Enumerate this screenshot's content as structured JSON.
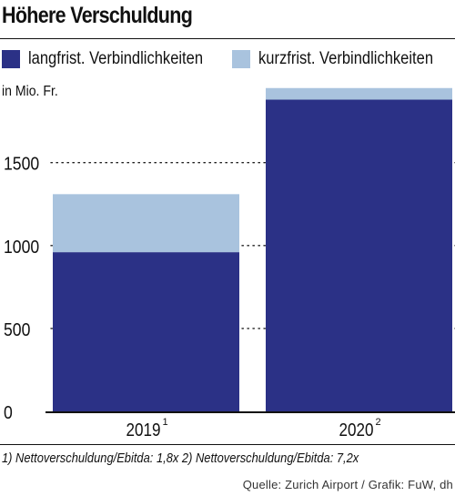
{
  "title": "Höhere Verschuldung",
  "unit_label": "in Mio. Fr.",
  "legend": [
    {
      "label": "langfrist. Verbindlichkeiten",
      "color": "#2b3186"
    },
    {
      "label": "kurzfrist. Verbindlichkeiten",
      "color": "#a9c3de"
    }
  ],
  "footnotes": "1) Nettoverschuldung/Ebitda: 1,8x  2) Nettoverschuldung/Ebitda: 7,2x",
  "source": "Quelle: Zurich Airport / Grafik: FuW, dh",
  "chart_data": {
    "type": "bar",
    "stacked": true,
    "categories": [
      "2019",
      "2020"
    ],
    "category_superscripts": [
      "1",
      "2"
    ],
    "series": [
      {
        "name": "langfrist. Verbindlichkeiten",
        "values": [
          960,
          1880
        ],
        "color": "#2b3186"
      },
      {
        "name": "kurzfrist. Verbindlichkeiten",
        "values": [
          350,
          70
        ],
        "color": "#a9c3de"
      }
    ],
    "y_ticks": [
      0,
      500,
      1000,
      1500
    ],
    "ylim": [
      0,
      2020
    ],
    "ylabel": "in Mio. Fr.",
    "grid": "dotted"
  }
}
